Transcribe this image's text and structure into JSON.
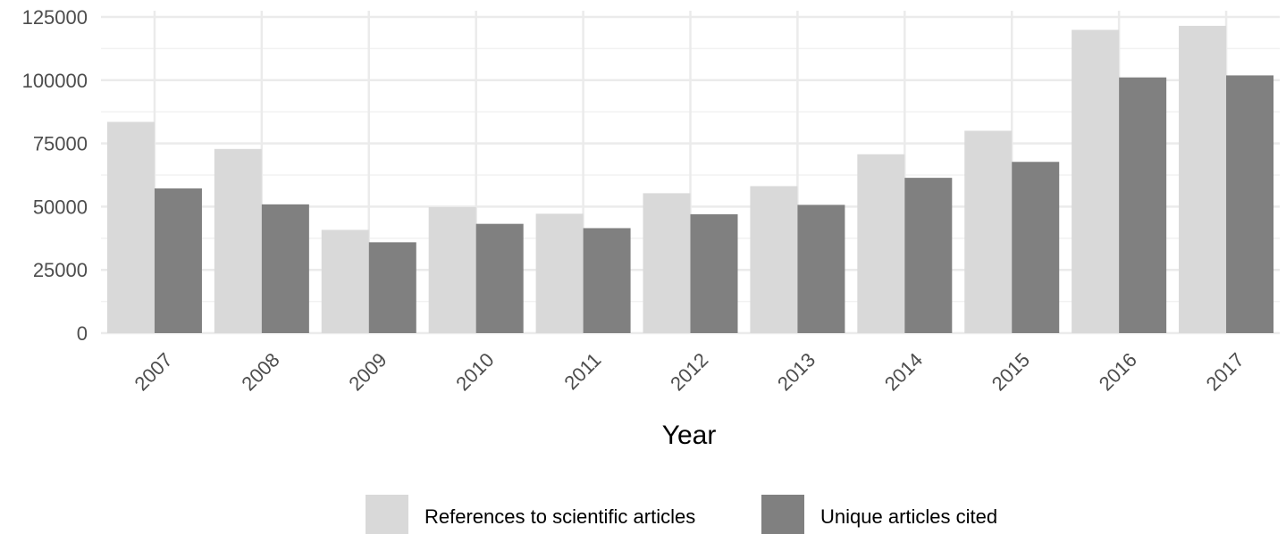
{
  "chart_data": {
    "type": "bar",
    "title": "",
    "xlabel": "Year",
    "ylabel": "",
    "ylim": [
      0,
      125000
    ],
    "yticks": [
      0,
      25000,
      50000,
      75000,
      100000,
      125000
    ],
    "categories": [
      "2007",
      "2008",
      "2009",
      "2010",
      "2011",
      "2012",
      "2013",
      "2014",
      "2015",
      "2016",
      "2017"
    ],
    "series": [
      {
        "name": "References to scientific articles",
        "color": "#d9d9d9",
        "values": [
          83500,
          72800,
          40800,
          49800,
          47200,
          55300,
          58100,
          70700,
          80000,
          119900,
          121500
        ]
      },
      {
        "name": "Unique articles cited",
        "color": "#808080",
        "values": [
          57200,
          50900,
          35900,
          43200,
          41500,
          47000,
          50700,
          61400,
          67700,
          101100,
          101900
        ]
      }
    ],
    "grid": true,
    "legend_position": "bottom"
  }
}
